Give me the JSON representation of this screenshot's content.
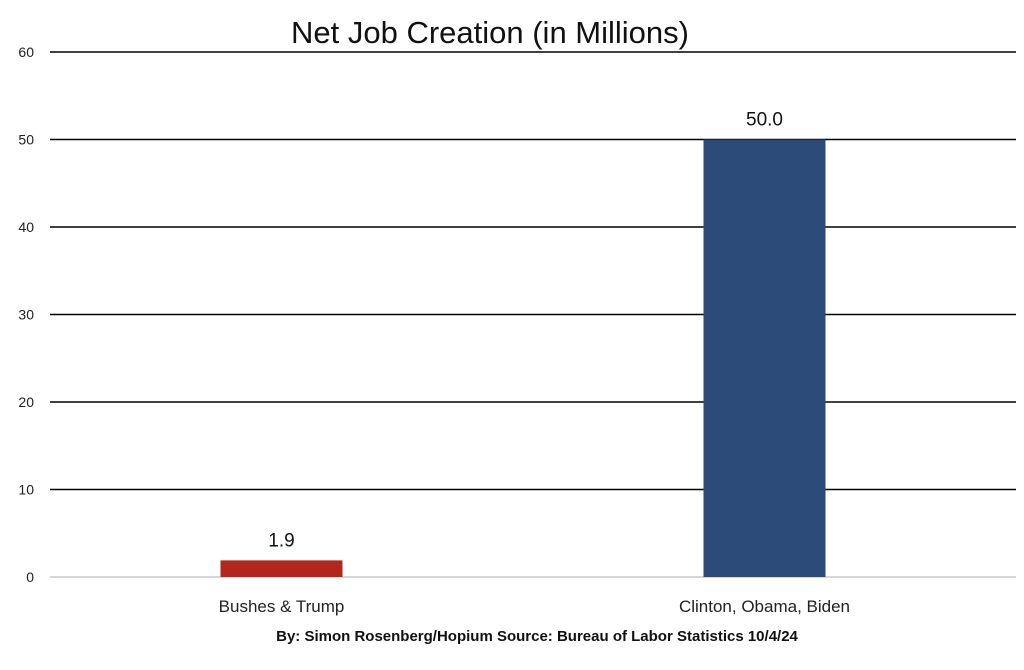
{
  "chart_data": {
    "type": "bar",
    "title": "Net Job Creation (in Millions)",
    "categories": [
      "Bushes & Trump",
      "Clinton, Obama, Biden"
    ],
    "values": [
      1.9,
      50.0
    ],
    "value_labels": [
      "1.9",
      "50.0"
    ],
    "bar_colors": [
      "#b3261e",
      "#2c4b78"
    ],
    "ylim": [
      0,
      60
    ],
    "yticks": [
      0,
      10,
      20,
      30,
      40,
      50,
      60
    ],
    "xlabel": "",
    "ylabel": "",
    "grid": true,
    "legend": "none",
    "source_note": "By: Simon Rosenberg/Hopium Source: Bureau of Labor Statistics 10/4/24"
  }
}
